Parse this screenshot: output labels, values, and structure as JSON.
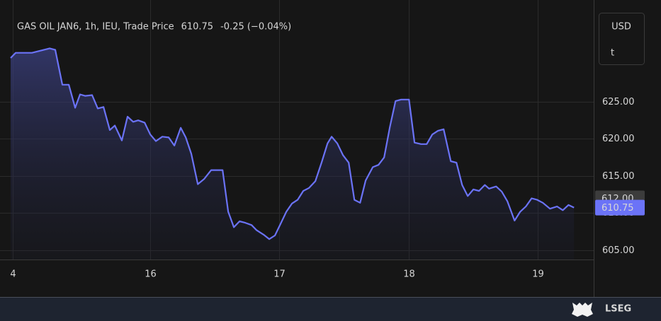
{
  "chart_data": {
    "type": "line",
    "title": "GAS OIL JAN6, 1h, IEU, Trade Price",
    "last_label": "610.75",
    "change_label": "-0.25 (−0.04%)",
    "currency": "USD",
    "unit": "t",
    "brand": "LSEG",
    "color": "#6b73f7",
    "grid": true,
    "x": [
      14.922,
      14.961,
      15.087,
      15.224,
      15.267,
      15.322,
      15.372,
      15.421,
      15.459,
      15.498,
      15.552,
      15.596,
      15.64,
      15.689,
      15.728,
      15.782,
      15.826,
      15.87,
      15.908,
      15.958,
      16.002,
      16.045,
      16.095,
      16.144,
      16.188,
      16.237,
      16.276,
      16.319,
      16.369,
      16.418,
      16.473,
      16.561,
      16.604,
      16.648,
      16.692,
      16.736,
      16.785,
      16.824,
      16.878,
      16.922,
      16.966,
      17.01,
      17.054,
      17.098,
      17.141,
      17.185,
      17.229,
      17.278,
      17.328,
      17.372,
      17.404,
      17.448,
      17.492,
      17.536,
      17.58,
      17.624,
      17.667,
      17.722,
      17.766,
      17.81,
      17.854,
      17.898,
      17.941,
      18.002,
      18.045,
      18.095,
      18.139,
      18.182,
      18.226,
      18.27,
      18.325,
      18.369,
      18.413,
      18.456,
      18.5,
      18.544,
      18.588,
      18.621,
      18.676,
      18.719,
      18.763,
      18.818,
      18.862,
      18.906,
      18.95,
      18.993,
      19.037,
      19.092,
      19.147,
      19.191,
      19.235,
      19.278
    ],
    "values": [
      630.9,
      631.6,
      631.6,
      632.2,
      632.0,
      627.3,
      627.3,
      624.2,
      626.0,
      625.8,
      625.9,
      624.1,
      624.3,
      621.2,
      621.8,
      619.8,
      623.0,
      622.3,
      622.5,
      622.2,
      620.6,
      619.7,
      620.3,
      620.2,
      619.1,
      621.5,
      620.2,
      618.0,
      613.9,
      614.6,
      615.8,
      615.8,
      610.2,
      608.1,
      608.9,
      608.7,
      608.4,
      607.7,
      607.1,
      606.5,
      607.0,
      608.6,
      610.2,
      611.3,
      611.8,
      613.0,
      613.4,
      614.3,
      616.9,
      619.4,
      620.3,
      619.4,
      617.8,
      616.8,
      611.8,
      611.4,
      614.4,
      616.2,
      616.5,
      617.5,
      621.6,
      625.1,
      625.3,
      625.3,
      619.5,
      619.3,
      619.3,
      620.6,
      621.1,
      621.3,
      617.0,
      616.8,
      613.8,
      612.3,
      613.2,
      613.0,
      613.8,
      613.3,
      613.6,
      612.9,
      611.6,
      609.0,
      610.2,
      610.9,
      612.0,
      611.8,
      611.4,
      610.6,
      610.9,
      610.4,
      611.1,
      610.75
    ],
    "xlim": [
      14.84,
      19.43
    ],
    "xticks": [
      {
        "value": 14.94,
        "label": "4"
      },
      16,
      17,
      18,
      19
    ],
    "ylim": [
      603.76,
      638.71
    ],
    "yticks": [
      {
        "value": 605,
        "label": "605.00"
      },
      {
        "value": 610,
        "label": "610.00"
      },
      {
        "value": 615,
        "label": "615.00"
      },
      {
        "value": 620,
        "label": "620.00"
      },
      {
        "value": 625,
        "label": "625.00"
      }
    ],
    "markers": [
      {
        "value": 612,
        "label": "612.00",
        "color": "#3c3c3c"
      },
      {
        "value": 610.75,
        "label": "610.75",
        "color": "#6b73f7"
      }
    ]
  }
}
